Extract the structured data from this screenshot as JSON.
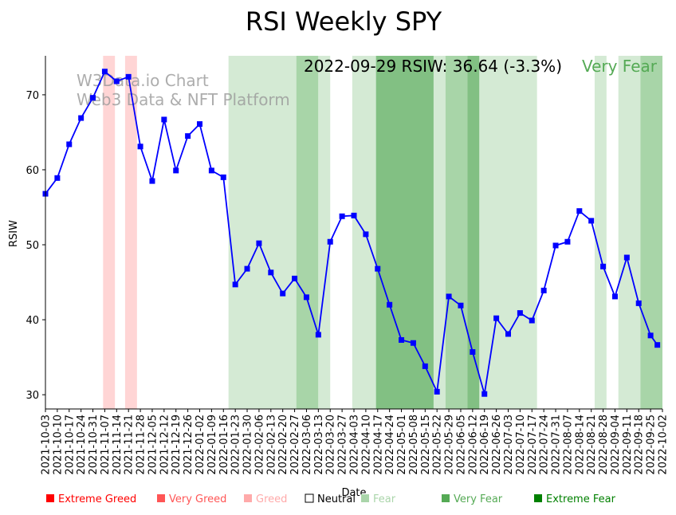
{
  "chart_data": {
    "type": "line",
    "title": "RSI Weekly SPY",
    "xlabel": "Date",
    "ylabel": "RSIW",
    "ylim": [
      28.1,
      75.2
    ],
    "xlim": [
      "2021-10-03",
      "2022-10-02"
    ],
    "yticks": [
      30,
      40,
      50,
      60,
      70
    ],
    "xtick_labels": [
      "2021-10-03",
      "2021-10-10",
      "2021-10-17",
      "2021-10-24",
      "2021-10-31",
      "2021-11-07",
      "2021-11-14",
      "2021-11-21",
      "2021-11-28",
      "2021-12-05",
      "2021-12-12",
      "2021-12-19",
      "2021-12-26",
      "2022-01-02",
      "2022-01-09",
      "2022-01-16",
      "2022-01-23",
      "2022-01-30",
      "2022-02-06",
      "2022-02-13",
      "2022-02-20",
      "2022-02-27",
      "2022-03-06",
      "2022-03-13",
      "2022-03-20",
      "2022-03-27",
      "2022-04-03",
      "2022-04-10",
      "2022-04-17",
      "2022-04-24",
      "2022-05-01",
      "2022-05-08",
      "2022-05-15",
      "2022-05-22",
      "2022-05-29",
      "2022-06-05",
      "2022-06-12",
      "2022-06-19",
      "2022-06-26",
      "2022-07-03",
      "2022-07-10",
      "2022-07-17",
      "2022-07-24",
      "2022-07-31",
      "2022-08-07",
      "2022-08-14",
      "2022-08-21",
      "2022-08-28",
      "2022-09-04",
      "2022-09-11",
      "2022-09-18",
      "2022-09-25",
      "2022-10-02"
    ],
    "series": [
      {
        "name": "RSIW",
        "color": "#0000ff",
        "x": [
          "2021-10-03",
          "2021-10-10",
          "2021-10-17",
          "2021-10-24",
          "2021-10-31",
          "2021-11-07",
          "2021-11-14",
          "2021-11-21",
          "2021-11-28",
          "2021-12-05",
          "2021-12-12",
          "2021-12-19",
          "2021-12-26",
          "2022-01-02",
          "2022-01-09",
          "2022-01-16",
          "2022-01-23",
          "2022-01-30",
          "2022-02-06",
          "2022-02-13",
          "2022-02-20",
          "2022-02-27",
          "2022-03-06",
          "2022-03-13",
          "2022-03-20",
          "2022-03-27",
          "2022-04-03",
          "2022-04-10",
          "2022-04-17",
          "2022-04-24",
          "2022-05-01",
          "2022-05-08",
          "2022-05-15",
          "2022-05-22",
          "2022-05-29",
          "2022-06-05",
          "2022-06-12",
          "2022-06-19",
          "2022-06-26",
          "2022-07-03",
          "2022-07-10",
          "2022-07-17",
          "2022-07-24",
          "2022-07-31",
          "2022-08-07",
          "2022-08-14",
          "2022-08-21",
          "2022-08-28",
          "2022-09-04",
          "2022-09-11",
          "2022-09-18",
          "2022-09-25",
          "2022-09-29"
        ],
        "values": [
          56.8,
          58.9,
          63.4,
          66.9,
          69.6,
          73.1,
          71.8,
          72.4,
          63.1,
          58.5,
          66.7,
          59.9,
          64.5,
          66.1,
          59.9,
          59.0,
          44.7,
          46.8,
          50.2,
          46.3,
          43.5,
          45.5,
          43.0,
          38.0,
          50.4,
          53.8,
          53.9,
          51.4,
          46.8,
          42.0,
          37.3,
          36.9,
          33.8,
          30.4,
          43.1,
          41.9,
          35.7,
          30.1,
          40.2,
          38.1,
          40.9,
          39.9,
          43.9,
          49.9,
          50.4,
          54.5,
          53.2,
          47.1,
          43.1,
          48.3,
          42.2,
          37.9,
          36.64
        ]
      }
    ],
    "bands": [
      {
        "start": "2021-11-06",
        "end": "2021-11-13",
        "category": "Greed"
      },
      {
        "start": "2021-11-19",
        "end": "2021-11-26",
        "category": "Greed"
      },
      {
        "start": "2022-01-19",
        "end": "2022-02-28",
        "category": "Fear"
      },
      {
        "start": "2022-02-28",
        "end": "2022-03-13",
        "category": "Very Fear"
      },
      {
        "start": "2022-03-13",
        "end": "2022-03-20",
        "category": "Fear"
      },
      {
        "start": "2022-04-02",
        "end": "2022-04-16",
        "category": "Fear"
      },
      {
        "start": "2022-04-16",
        "end": "2022-05-20",
        "category": "Extreme Fear"
      },
      {
        "start": "2022-05-20",
        "end": "2022-05-27",
        "category": "Fear"
      },
      {
        "start": "2022-05-27",
        "end": "2022-06-09",
        "category": "Very Fear"
      },
      {
        "start": "2022-06-09",
        "end": "2022-06-16",
        "category": "Extreme Fear"
      },
      {
        "start": "2022-06-16",
        "end": "2022-07-20",
        "category": "Fear"
      },
      {
        "start": "2022-08-23",
        "end": "2022-08-30",
        "category": "Fear"
      },
      {
        "start": "2022-09-06",
        "end": "2022-09-19",
        "category": "Fear"
      },
      {
        "start": "2022-09-19",
        "end": "2022-10-02",
        "category": "Very Fear"
      }
    ],
    "band_colors": {
      "Greed": "#ffd5d5",
      "Fear": "#d4ead4",
      "Very Fear": "#a8d5a8",
      "Extreme Fear": "#82c083"
    },
    "annotation": {
      "text": "2022-09-29 RSIW: 36.64 (-3.3%)",
      "status": "Very Fear",
      "status_color": "#55aa55"
    },
    "watermark": [
      "W3Data.io Chart",
      "Web3 Data & NFT Platform"
    ],
    "legend": {
      "placement": "bottom",
      "items": [
        {
          "label": "Extreme Greed",
          "color": "#ff0000"
        },
        {
          "label": "Very Greed",
          "color": "#ff5555"
        },
        {
          "label": "Greed",
          "color": "#ffaaaa"
        },
        {
          "label": "Neutral",
          "color": "#000000",
          "hollow": true
        },
        {
          "label": "Fear",
          "color": "#aad5aa"
        },
        {
          "label": "Very Fear",
          "color": "#55aa55"
        },
        {
          "label": "Extreme Fear",
          "color": "#008000"
        }
      ]
    },
    "grid": false
  }
}
